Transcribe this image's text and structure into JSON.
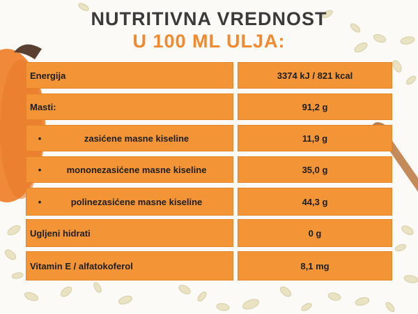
{
  "title_line1": "NUTRITIVNA VREDNOST",
  "title_line2": "U 100 ML ULJA:",
  "colors": {
    "accent": "#f39437",
    "title_orange": "#f0892f",
    "title_dark": "#3a3a3a"
  },
  "rows": [
    {
      "label": "Energija",
      "value": "3374 kJ / 821 kcal",
      "bullet": ""
    },
    {
      "label": "Masti:",
      "value": "91,2 g",
      "bullet": ""
    },
    {
      "label": "zasićene masne kiseline",
      "value": "11,9 g",
      "bullet": "•"
    },
    {
      "label": "mononezasićene masne kiseline",
      "value": "35,0 g",
      "bullet": "•"
    },
    {
      "label": "polinezasićene masne kiseline",
      "value": "44,3 g",
      "bullet": "•"
    },
    {
      "label": "Ugljeni hidrati",
      "value": "0 g",
      "bullet": ""
    },
    {
      "label": "Vitamin E / alfatokoferol",
      "value": "8,1 mg",
      "bullet": ""
    }
  ]
}
